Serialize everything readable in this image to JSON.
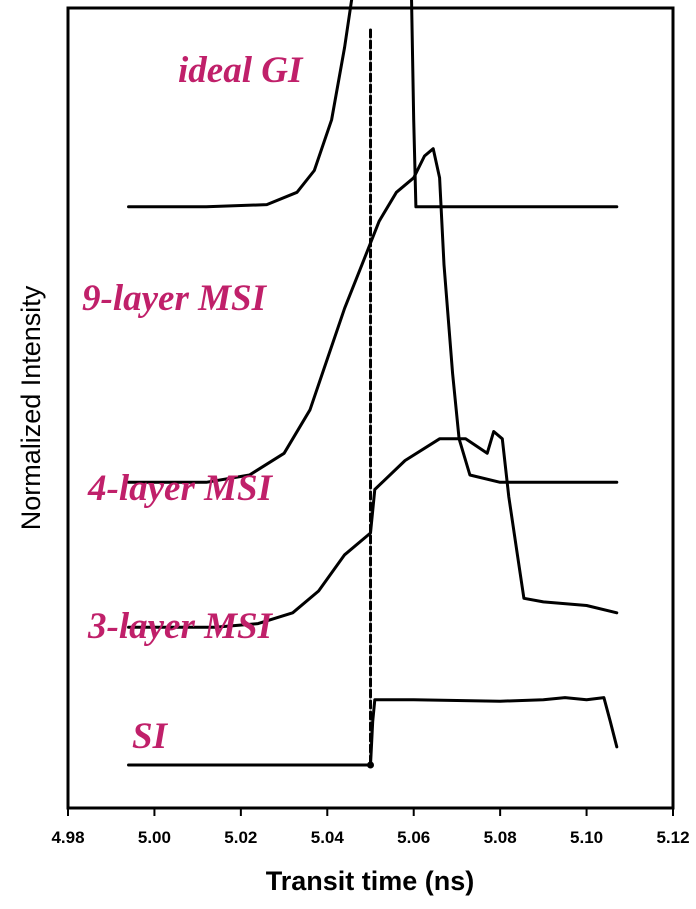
{
  "chart_data": {
    "type": "line",
    "xlabel": "Transit time (ns)",
    "ylabel": "Normalized Intensity",
    "xlim": [
      4.98,
      5.12
    ],
    "x_ticks": [
      "4.98",
      "5.00",
      "5.02",
      "5.04",
      "5.06",
      "5.08",
      "5.10",
      "5.12"
    ],
    "grid": false,
    "label_color": "#c0206a",
    "line_color": "#000000",
    "series": [
      {
        "name": "ideal GI",
        "style": "dashed",
        "points": [
          [
            5.05,
            1.0
          ],
          [
            5.05,
            0.0
          ]
        ]
      },
      {
        "name": "9-layer MSI",
        "offset": 0.77,
        "points": [
          [
            4.994,
            0
          ],
          [
            5.012,
            0
          ],
          [
            5.026,
            0.003
          ],
          [
            5.033,
            0.02
          ],
          [
            5.037,
            0.05
          ],
          [
            5.041,
            0.12
          ],
          [
            5.044,
            0.22
          ],
          [
            5.047,
            0.34
          ],
          [
            5.049,
            0.45
          ],
          [
            5.051,
            0.58
          ],
          [
            5.053,
            0.73
          ],
          [
            5.055,
            0.87
          ],
          [
            5.0565,
            0.92
          ],
          [
            5.058,
            0.8
          ],
          [
            5.059,
            0.45
          ],
          [
            5.06,
            0.12
          ],
          [
            5.0605,
            0
          ],
          [
            5.075,
            0
          ],
          [
            5.107,
            0
          ]
        ]
      },
      {
        "name": "4-layer MSI",
        "offset": 0.39,
        "points": [
          [
            4.994,
            0
          ],
          [
            5.012,
            0
          ],
          [
            5.022,
            0.01
          ],
          [
            5.03,
            0.04
          ],
          [
            5.036,
            0.1
          ],
          [
            5.04,
            0.17
          ],
          [
            5.044,
            0.24
          ],
          [
            5.048,
            0.3
          ],
          [
            5.052,
            0.36
          ],
          [
            5.056,
            0.4
          ],
          [
            5.06,
            0.42
          ],
          [
            5.0625,
            0.45
          ],
          [
            5.0645,
            0.46
          ],
          [
            5.066,
            0.42
          ],
          [
            5.067,
            0.3
          ],
          [
            5.069,
            0.15
          ],
          [
            5.0705,
            0.06
          ],
          [
            5.073,
            0.01
          ],
          [
            5.08,
            0
          ],
          [
            5.107,
            0
          ]
        ]
      },
      {
        "name": "3-layer MSI",
        "offset": 0.19,
        "points": [
          [
            4.994,
            0
          ],
          [
            5.014,
            0
          ],
          [
            5.024,
            0.005
          ],
          [
            5.032,
            0.02
          ],
          [
            5.038,
            0.05
          ],
          [
            5.044,
            0.1
          ],
          [
            5.05,
            0.13
          ],
          [
            5.051,
            0.19
          ],
          [
            5.058,
            0.23
          ],
          [
            5.066,
            0.26
          ],
          [
            5.072,
            0.26
          ],
          [
            5.077,
            0.24
          ],
          [
            5.0785,
            0.27
          ],
          [
            5.0805,
            0.26
          ],
          [
            5.082,
            0.18
          ],
          [
            5.084,
            0.1
          ],
          [
            5.0855,
            0.04
          ],
          [
            5.09,
            0.035
          ],
          [
            5.1,
            0.03
          ],
          [
            5.107,
            0.02
          ]
        ]
      },
      {
        "name": "SI",
        "offset": 0.0,
        "points": [
          [
            4.994,
            0
          ],
          [
            5.05,
            0
          ],
          [
            5.0505,
            0.06
          ],
          [
            5.051,
            0.09
          ],
          [
            5.054,
            0.09
          ],
          [
            5.06,
            0.09
          ],
          [
            5.08,
            0.088
          ],
          [
            5.09,
            0.09
          ],
          [
            5.095,
            0.093
          ],
          [
            5.1,
            0.09
          ],
          [
            5.104,
            0.093
          ],
          [
            5.1055,
            0.06
          ],
          [
            5.107,
            0.025
          ]
        ]
      }
    ]
  }
}
